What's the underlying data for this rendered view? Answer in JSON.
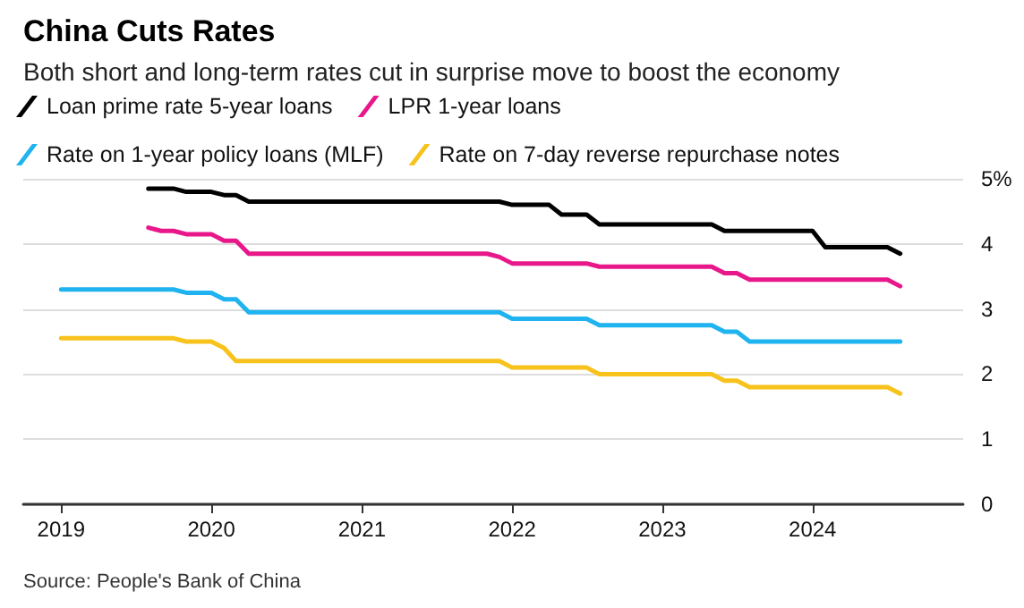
{
  "chart_data": {
    "type": "line",
    "title": "China Cuts Rates",
    "subtitle": "Both short and long-term rates cut in surprise move to boost the economy",
    "annotations": [
      "Source: People's Bank of China"
    ],
    "series": [
      {
        "name": "Loan prime rate 5-year loans",
        "color": "#000000",
        "x": [
          "2019-08",
          "2019-10",
          "2019-11",
          "2020-01",
          "2020-02",
          "2020-03",
          "2020-04",
          "2021-12",
          "2022-01",
          "2022-04",
          "2022-05",
          "2022-07",
          "2022-08",
          "2023-05",
          "2023-06",
          "2024-01",
          "2024-02",
          "2024-07",
          "2024-08"
        ],
        "values": [
          4.85,
          4.85,
          4.8,
          4.8,
          4.75,
          4.75,
          4.65,
          4.65,
          4.6,
          4.6,
          4.45,
          4.45,
          4.3,
          4.3,
          4.2,
          4.2,
          3.95,
          3.95,
          3.85
        ]
      },
      {
        "name": "LPR 1-year loans",
        "color": "#e8178a",
        "x": [
          "2019-08",
          "2019-09",
          "2019-10",
          "2019-11",
          "2020-01",
          "2020-02",
          "2020-03",
          "2020-04",
          "2021-11",
          "2021-12",
          "2022-01",
          "2022-07",
          "2022-08",
          "2023-05",
          "2023-06",
          "2023-07",
          "2023-08",
          "2024-07",
          "2024-08"
        ],
        "values": [
          4.25,
          4.2,
          4.2,
          4.15,
          4.15,
          4.05,
          4.05,
          3.85,
          3.85,
          3.8,
          3.7,
          3.7,
          3.65,
          3.65,
          3.55,
          3.55,
          3.45,
          3.45,
          3.35
        ]
      },
      {
        "name": "Rate on 1-year policy loans (MLF)",
        "color": "#1fb3ef",
        "x": [
          "2019-01",
          "2019-10",
          "2019-11",
          "2020-01",
          "2020-02",
          "2020-03",
          "2020-04",
          "2021-12",
          "2022-01",
          "2022-07",
          "2022-08",
          "2023-05",
          "2023-06",
          "2023-07",
          "2023-08",
          "2024-08"
        ],
        "values": [
          3.3,
          3.3,
          3.25,
          3.25,
          3.15,
          3.15,
          2.95,
          2.95,
          2.85,
          2.85,
          2.75,
          2.75,
          2.65,
          2.65,
          2.5,
          2.5
        ]
      },
      {
        "name": "Rate on 7-day reverse repurchase notes",
        "color": "#f7c21b",
        "x": [
          "2019-01",
          "2019-10",
          "2019-11",
          "2020-01",
          "2020-02",
          "2020-03",
          "2021-12",
          "2022-01",
          "2022-07",
          "2022-08",
          "2023-05",
          "2023-06",
          "2023-07",
          "2023-08",
          "2024-07",
          "2024-08"
        ],
        "values": [
          2.55,
          2.55,
          2.5,
          2.5,
          2.4,
          2.2,
          2.2,
          2.1,
          2.1,
          2.0,
          2.0,
          1.9,
          1.9,
          1.8,
          1.8,
          1.7
        ]
      }
    ],
    "xlim": [
      "2018-10",
      "2025-01"
    ],
    "xticks": [
      "2019",
      "2020",
      "2021",
      "2022",
      "2023",
      "2024"
    ],
    "ylim": [
      0,
      5
    ],
    "yticks": [
      0,
      1,
      2,
      3,
      4,
      {
        "value": 5,
        "label": "5%"
      }
    ],
    "grid": "y",
    "legend": "top left",
    "marker": "none",
    "line_style": "solid"
  }
}
